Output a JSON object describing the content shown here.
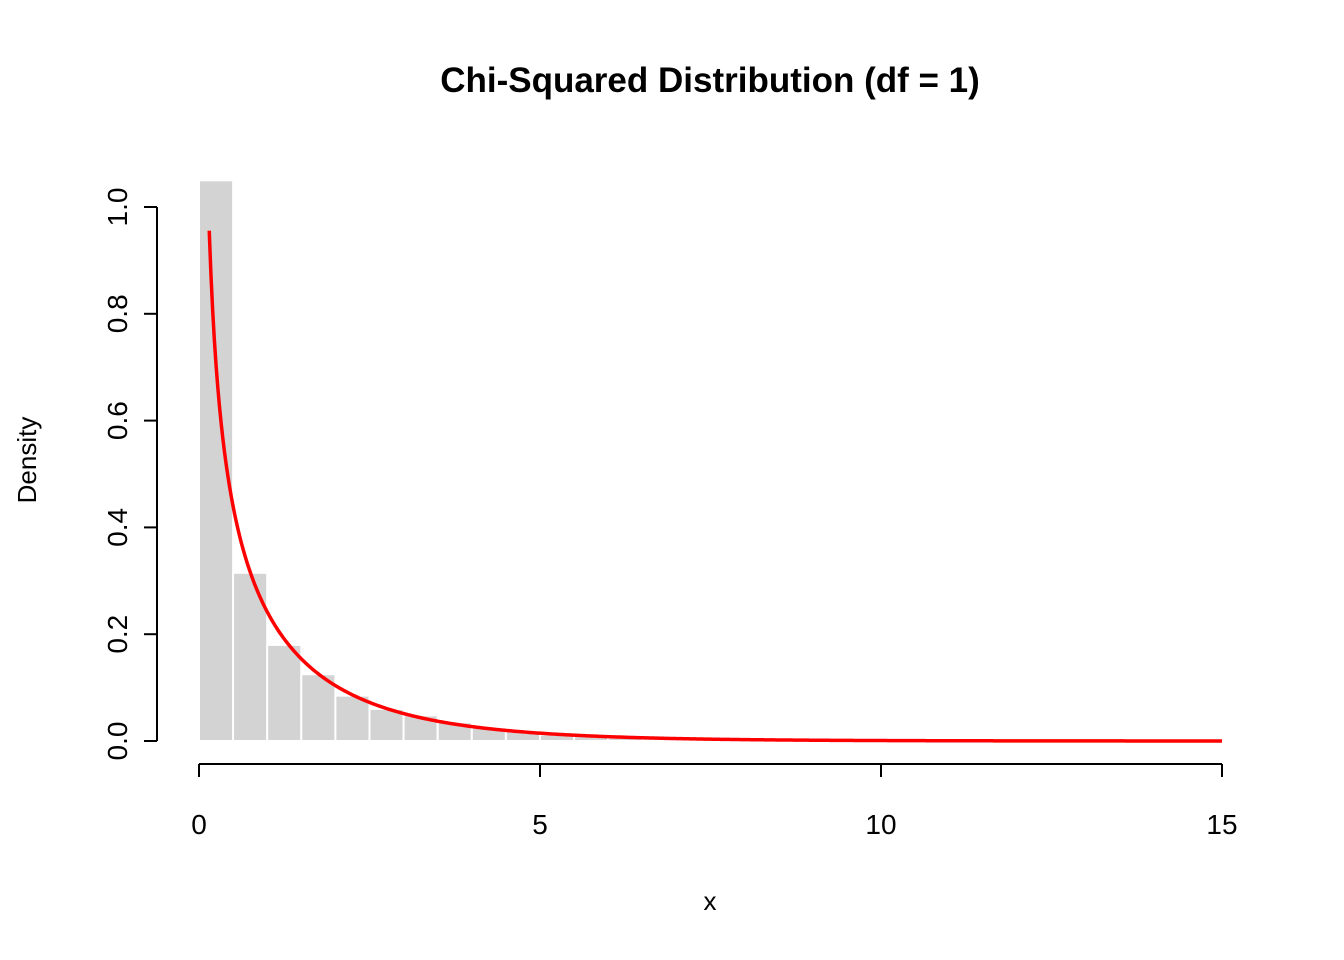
{
  "chart_data": {
    "type": "bar",
    "title": "Chi-Squared Distribution (df = 1)",
    "xlabel": "x",
    "ylabel": "Density",
    "xlim": [
      0,
      15
    ],
    "ylim": [
      0,
      1.0
    ],
    "x_ticks": [
      0,
      5,
      10,
      15
    ],
    "y_ticks": [
      "0.0",
      "0.2",
      "0.4",
      "0.6",
      "0.8",
      "1.0"
    ],
    "grid": false,
    "colors": {
      "bars": "#d3d3d3",
      "curve": "#ff0000"
    },
    "histogram": {
      "bin_width": 0.5,
      "bins": [
        {
          "x0": 0.0,
          "x1": 0.5,
          "density": 1.05
        },
        {
          "x0": 0.5,
          "x1": 1.0,
          "density": 0.315
        },
        {
          "x0": 1.0,
          "x1": 1.5,
          "density": 0.18
        },
        {
          "x0": 1.5,
          "x1": 2.0,
          "density": 0.125
        },
        {
          "x0": 2.0,
          "x1": 2.5,
          "density": 0.085
        },
        {
          "x0": 2.5,
          "x1": 3.0,
          "density": 0.06
        },
        {
          "x0": 3.0,
          "x1": 3.5,
          "density": 0.048
        },
        {
          "x0": 3.5,
          "x1": 4.0,
          "density": 0.035
        },
        {
          "x0": 4.0,
          "x1": 4.5,
          "density": 0.025
        },
        {
          "x0": 4.5,
          "x1": 5.0,
          "density": 0.018
        },
        {
          "x0": 5.0,
          "x1": 5.5,
          "density": 0.012
        },
        {
          "x0": 5.5,
          "x1": 6.0,
          "density": 0.009
        },
        {
          "x0": 6.0,
          "x1": 6.5,
          "density": 0.006
        },
        {
          "x0": 6.5,
          "x1": 7.0,
          "density": 0.004
        },
        {
          "x0": 7.0,
          "x1": 7.5,
          "density": 0.003
        },
        {
          "x0": 7.5,
          "x1": 8.0,
          "density": 0.002
        },
        {
          "x0": 8.0,
          "x1": 8.5,
          "density": 0.0015
        },
        {
          "x0": 8.5,
          "x1": 9.0,
          "density": 0.001
        }
      ]
    },
    "curve": {
      "x_start": 0.15,
      "x_end": 15
    }
  }
}
